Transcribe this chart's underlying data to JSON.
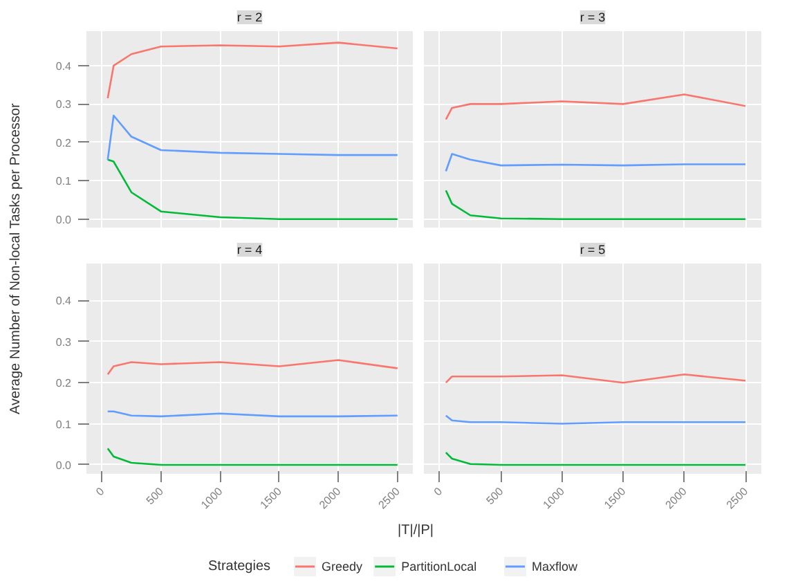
{
  "chart_data": [
    {
      "type": "line",
      "title": "r = 2",
      "ylabel": "Average Number of Non-local Tasks per Processor",
      "xlabel": "|T|/|P|",
      "legend_title": "Strategies",
      "legend": "bottom",
      "grid": true,
      "tick_labels": "y",
      "x": [
        50,
        100,
        250,
        500,
        1000,
        1500,
        2000,
        2500
      ],
      "xlim": [
        -130,
        2630
      ],
      "xticks": [
        0,
        500,
        1000,
        1500,
        2000,
        2500
      ],
      "ylim": [
        -0.022,
        0.49
      ],
      "yticks": [
        {
          "value": 0,
          "label": "0.0"
        },
        0.1,
        0.2,
        0.3,
        0.4
      ],
      "series": [
        {
          "name": "Greedy",
          "color": "#f8766d",
          "values": [
            0.315,
            0.4,
            0.43,
            0.45,
            0.453,
            0.45,
            0.46,
            0.445
          ]
        },
        {
          "name": "PartitionLocal",
          "color": "#00ba38",
          "values": [
            0.155,
            0.15,
            0.07,
            0.02,
            0.005,
            0.0,
            0.0,
            0.0
          ]
        },
        {
          "name": "Maxflow",
          "color": "#619cff",
          "values": [
            0.155,
            0.27,
            0.215,
            0.18,
            0.173,
            0.17,
            0.167,
            0.167
          ]
        }
      ]
    },
    {
      "type": "line",
      "title": "r = 3",
      "grid": true,
      "tick_labels": false,
      "x": [
        50,
        100,
        250,
        500,
        1000,
        1500,
        2000,
        2500
      ],
      "xlim": [
        -130,
        2630
      ],
      "xticks": [
        0,
        500,
        1000,
        1500,
        2000,
        2500
      ],
      "ylim": [
        -0.022,
        0.49
      ],
      "yticks": [
        0,
        0.1,
        0.2,
        0.3,
        0.4
      ],
      "series": [
        {
          "color": "#f8766d",
          "values": [
            0.26,
            0.29,
            0.3,
            0.3,
            0.307,
            0.3,
            0.325,
            0.295
          ]
        },
        {
          "color": "#00ba38",
          "values": [
            0.075,
            0.04,
            0.01,
            0.002,
            0.0,
            0.0,
            0.0,
            0.0
          ]
        },
        {
          "color": "#619cff",
          "values": [
            0.125,
            0.17,
            0.155,
            0.14,
            0.142,
            0.14,
            0.143,
            0.143
          ]
        }
      ]
    },
    {
      "type": "line",
      "title": "r = 4",
      "grid": true,
      "x": [
        50,
        100,
        250,
        500,
        1000,
        1500,
        2000,
        2500
      ],
      "xlim": [
        -130,
        2630
      ],
      "xticks": [
        0,
        500,
        1000,
        1500,
        2000,
        2500
      ],
      "ylim": [
        -0.022,
        0.49
      ],
      "yticks": [
        {
          "value": 0,
          "label": "0.0"
        },
        0.1,
        0.2,
        0.3,
        0.4
      ],
      "series": [
        {
          "color": "#f8766d",
          "values": [
            0.22,
            0.24,
            0.25,
            0.245,
            0.25,
            0.24,
            0.255,
            0.235
          ]
        },
        {
          "color": "#00ba38",
          "values": [
            0.04,
            0.02,
            0.005,
            0.0,
            0.0,
            0.0,
            0.0,
            0.0
          ]
        },
        {
          "color": "#619cff",
          "values": [
            0.13,
            0.13,
            0.12,
            0.118,
            0.125,
            0.118,
            0.118,
            0.12
          ]
        }
      ]
    },
    {
      "type": "line",
      "title": "r = 5",
      "grid": true,
      "tick_labels": "x",
      "x": [
        50,
        100,
        250,
        500,
        1000,
        1500,
        2000,
        2500
      ],
      "xlim": [
        -130,
        2630
      ],
      "xticks": [
        0,
        500,
        1000,
        1500,
        2000,
        2500
      ],
      "ylim": [
        -0.022,
        0.49
      ],
      "yticks": [
        0,
        0.1,
        0.2,
        0.3,
        0.4
      ],
      "series": [
        {
          "color": "#f8766d",
          "values": [
            0.2,
            0.215,
            0.215,
            0.215,
            0.218,
            0.2,
            0.22,
            0.205
          ]
        },
        {
          "color": "#00ba38",
          "values": [
            0.03,
            0.015,
            0.002,
            0.0,
            0.0,
            0.0,
            0.0,
            0.0
          ]
        },
        {
          "color": "#619cff",
          "values": [
            0.12,
            0.108,
            0.104,
            0.104,
            0.1,
            0.104,
            0.104,
            0.104
          ]
        }
      ]
    }
  ]
}
